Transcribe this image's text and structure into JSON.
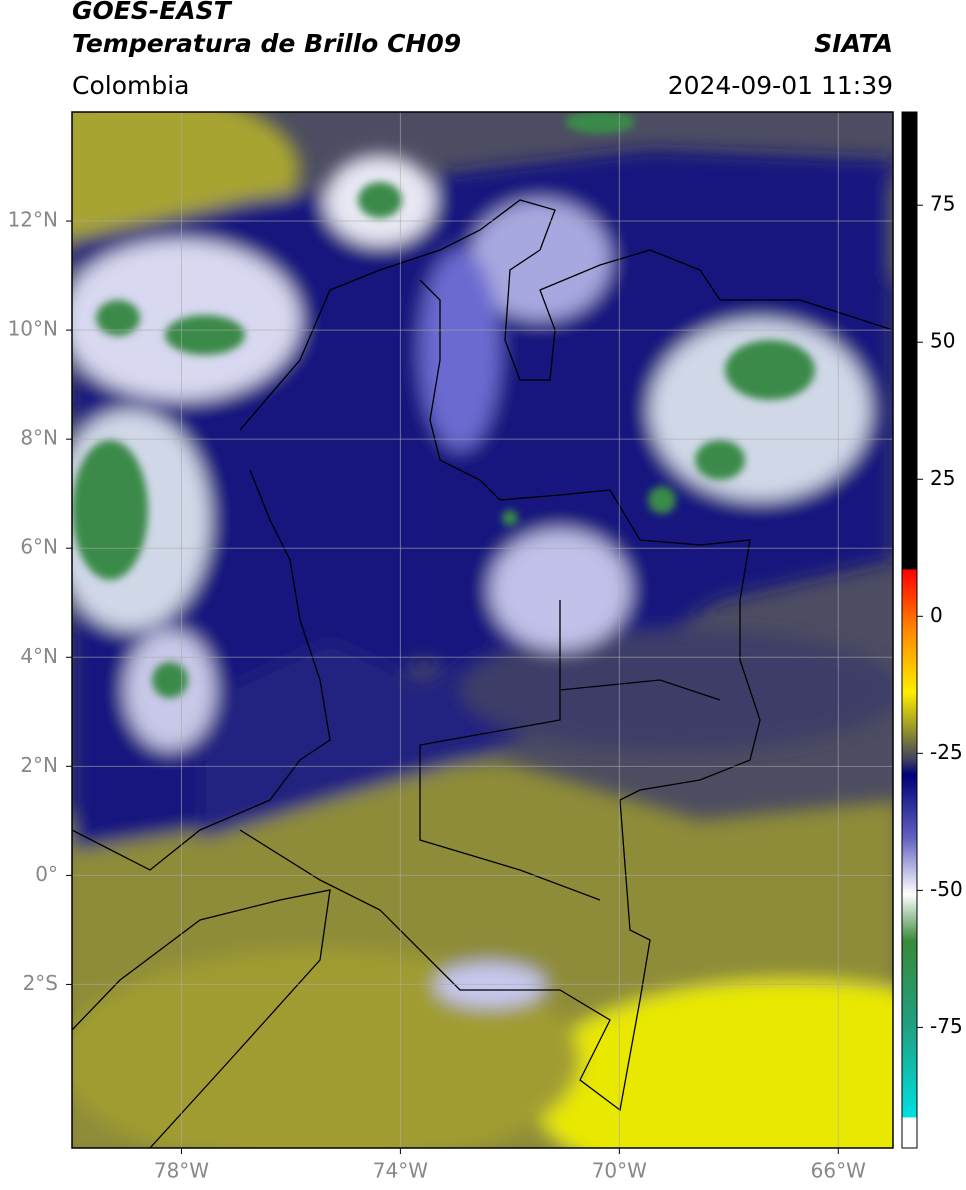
{
  "header": {
    "line1": "GOES-EAST",
    "line2": "Temperatura de Brillo CH09",
    "brand": "SIATA",
    "region": "Colombia",
    "timestamp": "2024-09-01 11:39"
  },
  "map": {
    "lonlim": [
      -80,
      -65
    ],
    "latlim": [
      -5,
      14
    ],
    "lat_ticks": [
      {
        "value": 12,
        "label": "12°N"
      },
      {
        "value": 10,
        "label": "10°N"
      },
      {
        "value": 8,
        "label": "8°N"
      },
      {
        "value": 6,
        "label": "6°N"
      },
      {
        "value": 4,
        "label": "4°N"
      },
      {
        "value": 2,
        "label": "2°N"
      },
      {
        "value": 0,
        "label": "0°"
      },
      {
        "value": -2,
        "label": "2°S"
      }
    ],
    "lon_ticks": [
      {
        "value": -78,
        "label": "78°W"
      },
      {
        "value": -74,
        "label": "74°W"
      },
      {
        "value": -70,
        "label": "70°W"
      },
      {
        "value": -66,
        "label": "66°W"
      }
    ],
    "grid": true
  },
  "colorbar": {
    "vlim": [
      -97,
      92
    ],
    "ticks": [
      75,
      50,
      25,
      0,
      -25,
      -50,
      -75
    ]
  }
}
